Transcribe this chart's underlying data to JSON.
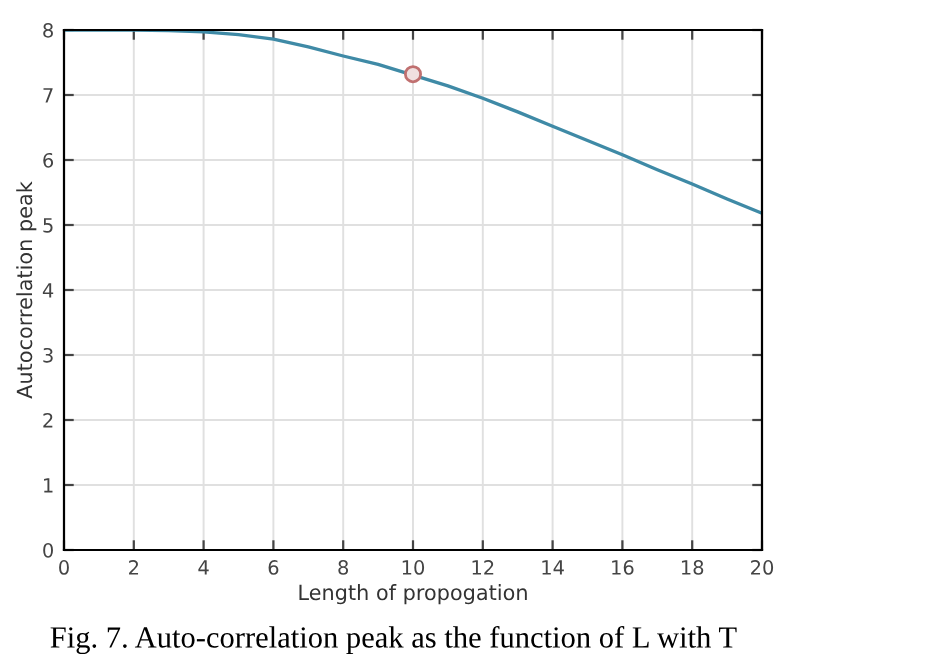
{
  "chart_data": {
    "type": "line",
    "xlabel": "Length of propogation",
    "ylabel": "Autocorrelation peak",
    "annotations": [
      "Fig. 7. Auto-correlation peak as the function of L with T"
    ],
    "xlim": [
      0,
      20
    ],
    "ylim": [
      0,
      8
    ],
    "xticks": [
      0,
      2,
      4,
      6,
      8,
      10,
      12,
      14,
      16,
      18,
      20
    ],
    "yticks": [
      0,
      1,
      2,
      3,
      4,
      5,
      6,
      7,
      8
    ],
    "grid": true,
    "series": [
      {
        "color": "#3f8aa6",
        "x": [
          0,
          1,
          2,
          3,
          4,
          5,
          6,
          7,
          8,
          9,
          11,
          12,
          13,
          14,
          15,
          16,
          17,
          18,
          19,
          20
        ],
        "values": [
          8,
          8,
          8,
          7.99,
          7.97,
          7.93,
          7.86,
          7.74,
          7.6,
          7.47,
          7.14,
          6.95,
          6.74,
          6.52,
          6.3,
          6.08,
          5.85,
          5.63,
          5.4,
          5.18
        ],
        "marker": "none"
      },
      {
        "type": "scatter",
        "color": "#c07070",
        "x": [
          10
        ],
        "values": [
          7.32
        ],
        "marker": "circle"
      }
    ]
  }
}
